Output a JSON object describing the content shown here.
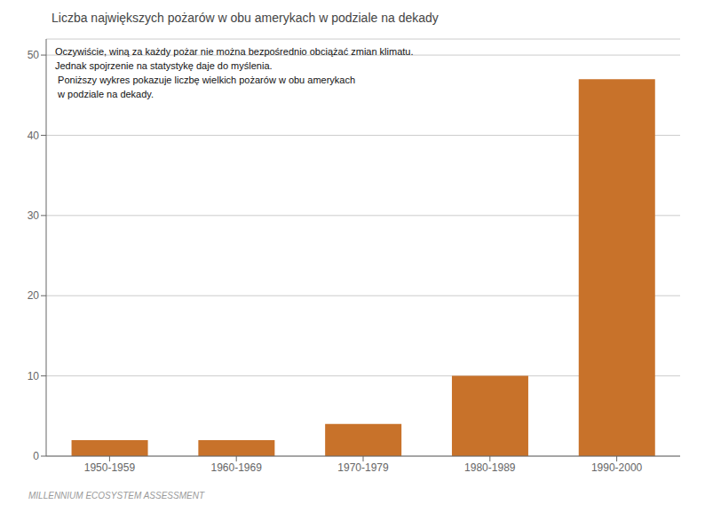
{
  "chart_data": {
    "type": "bar",
    "title": "Liczba największych pożarów w obu amerykach w podziale na dekady",
    "categories": [
      "1950-1959",
      "1960-1969",
      "1970-1979",
      "1980-1989",
      "1990-2000"
    ],
    "values": [
      2,
      2,
      4,
      10,
      47
    ],
    "color": "#C8722A",
    "ylim": [
      0,
      52
    ],
    "yticks": [
      0,
      10,
      20,
      30,
      40,
      50
    ],
    "grid": true,
    "annotations": [
      "Oczywiście, winą za każdy pożar nie można bezpośrednio obciążać zmian klimatu.",
      "Jednak spojrzenie na statystykę daje do myślenia.",
      " Poniższy wykres pokazuje liczbę wielkich pożarów w obu amerykach",
      " w podziale na dekady."
    ],
    "footer": "MILLENNIUM ECOSYSTEM ASSESSMENT"
  }
}
